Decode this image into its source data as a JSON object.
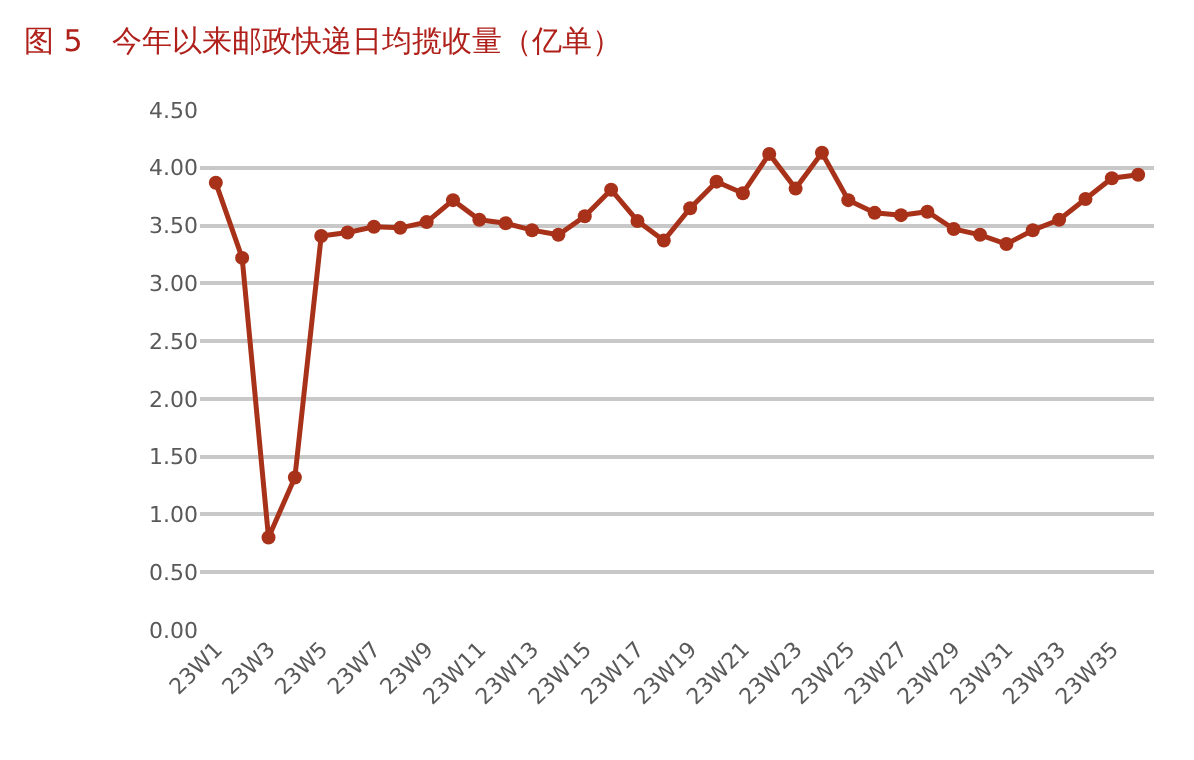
{
  "chart_data": {
    "type": "line",
    "title": "图 5　今年以来邮政快递日均揽收量（亿单）",
    "categories": [
      "23W1",
      null,
      "23W3",
      null,
      "23W5",
      null,
      "23W7",
      null,
      "23W9",
      null,
      "23W11",
      null,
      "23W13",
      null,
      "23W15",
      null,
      "23W17",
      null,
      "23W19",
      null,
      "23W21",
      null,
      "23W23",
      null,
      "23W25",
      null,
      "23W27",
      null,
      "23W29",
      null,
      "23W31",
      null,
      "23W33",
      null,
      "23W35",
      null
    ],
    "series": [
      {
        "color": "#a83219",
        "values": [
          3.87,
          3.22,
          0.8,
          1.32,
          3.41,
          3.44,
          3.49,
          3.48,
          3.53,
          3.72,
          3.55,
          3.52,
          3.46,
          3.42,
          3.58,
          3.81,
          3.54,
          3.37,
          3.65,
          3.88,
          3.78,
          4.12,
          3.82,
          4.13,
          3.72,
          3.61,
          3.59,
          3.62,
          3.47,
          3.42,
          3.34,
          3.46,
          3.55,
          3.73,
          3.91,
          3.94
        ]
      }
    ],
    "ylim": [
      0,
      4.5
    ],
    "yticks": [
      {
        "value": 0,
        "label": "0.00"
      },
      {
        "value": 0.5,
        "label": "0.50"
      },
      {
        "value": 1,
        "label": "1.00"
      },
      {
        "value": 1.5,
        "label": "1.50"
      },
      {
        "value": 2,
        "label": "2.00"
      },
      {
        "value": 2.5,
        "label": "2.50"
      },
      {
        "value": 3,
        "label": "3.00"
      },
      {
        "value": 3.5,
        "label": "3.50"
      },
      {
        "value": 4,
        "label": "4.00"
      },
      {
        "value": 4.5,
        "label": "4.50"
      }
    ],
    "grid": "y",
    "marker": "circle",
    "line_style": "solid",
    "legend": false
  }
}
